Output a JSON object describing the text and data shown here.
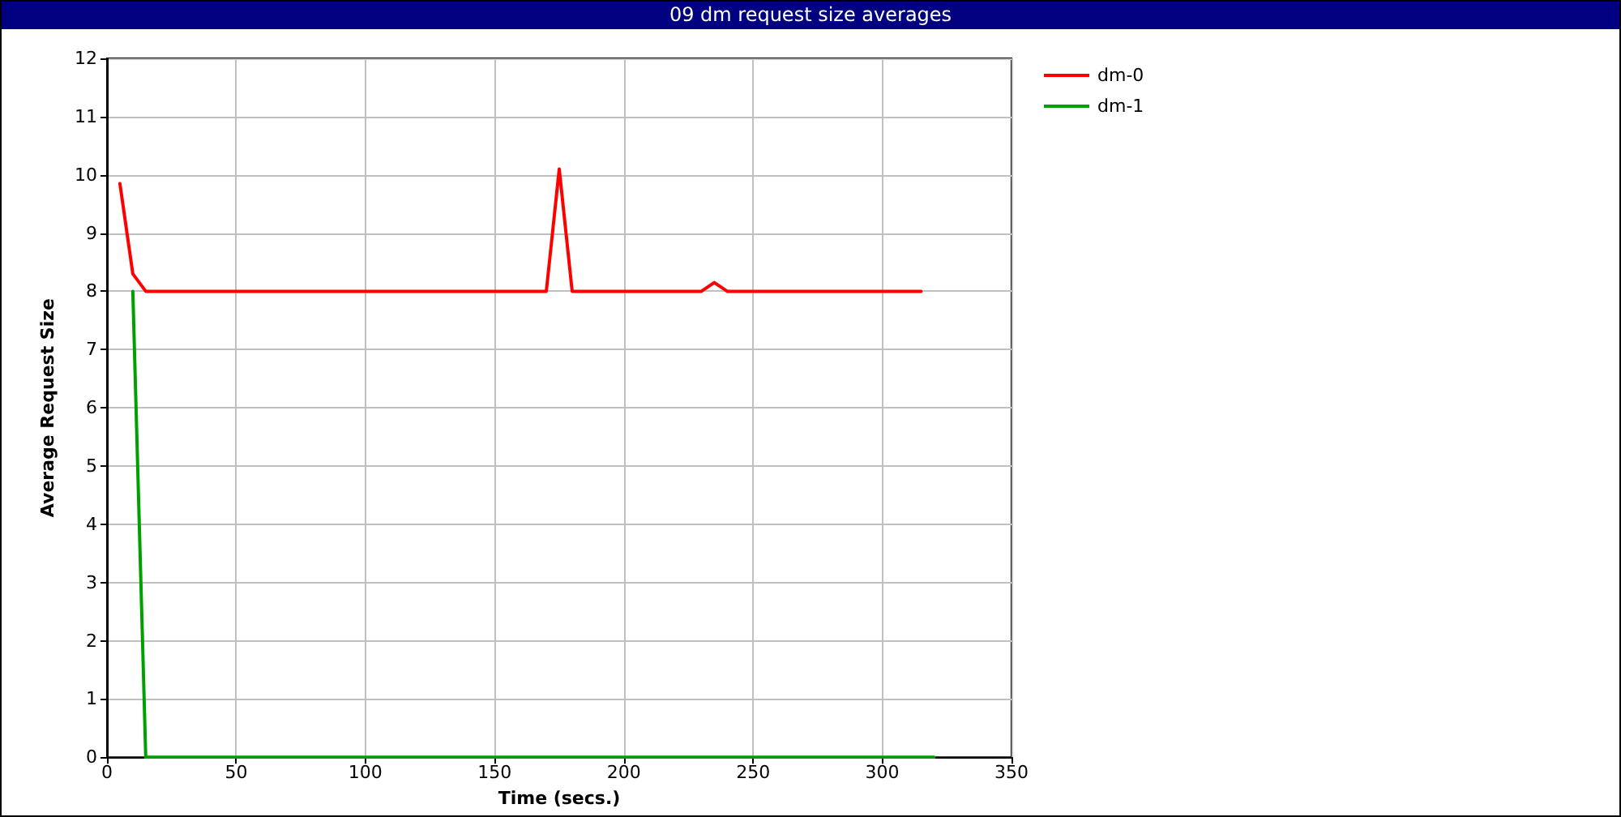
{
  "chart_data": {
    "type": "line",
    "title": "09 dm request size averages",
    "xlabel": "Time (secs.)",
    "ylabel": "Average Request Size",
    "series": [
      {
        "name": "dm-0",
        "color": "#ff0000",
        "x": [
          5,
          10,
          15,
          170,
          175,
          180,
          230,
          235,
          240,
          315
        ],
        "values": [
          9.85,
          8.3,
          8,
          8,
          10.1,
          8,
          8,
          8.15,
          8,
          8
        ]
      },
      {
        "name": "dm-1",
        "color": "#00a000",
        "x": [
          10,
          15,
          320
        ],
        "values": [
          8,
          0,
          0
        ]
      }
    ],
    "xlim": [
      0,
      350
    ],
    "xticks": [
      0,
      50,
      100,
      150,
      200,
      250,
      300,
      350
    ],
    "ylim": [
      0,
      12
    ],
    "yticks": [
      0,
      1,
      2,
      3,
      4,
      5,
      6,
      7,
      8,
      9,
      10,
      11,
      12
    ],
    "grid": true,
    "legend": "right",
    "marker": "none",
    "line_style": "solid"
  }
}
